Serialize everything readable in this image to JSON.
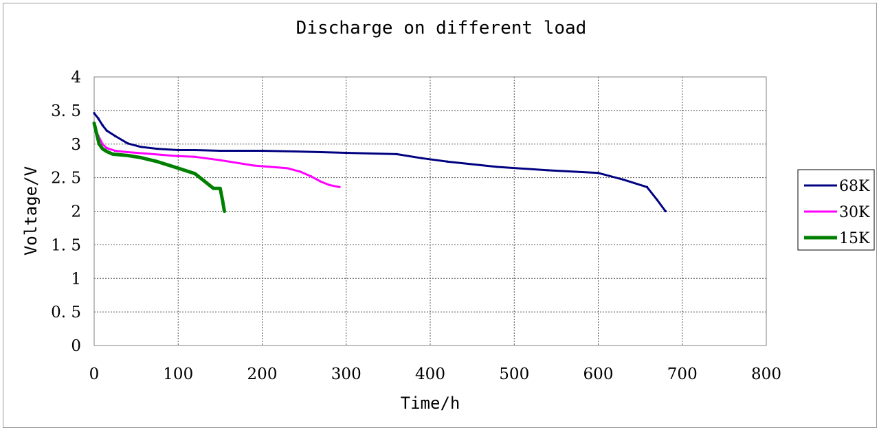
{
  "chart_data": {
    "type": "line",
    "title": "Discharge on different load",
    "xlabel": "Time/h",
    "ylabel": "Voltage/V",
    "xlim": [
      0,
      800
    ],
    "ylim": [
      0,
      4
    ],
    "x_ticks": [
      0,
      100,
      200,
      300,
      400,
      500,
      600,
      700,
      800
    ],
    "y_ticks": [
      0,
      0.5,
      1,
      1.5,
      2,
      2.5,
      3,
      3.5,
      4
    ],
    "x_tick_labels": [
      "0",
      "100",
      "200",
      "300",
      "400",
      "500",
      "600",
      "700",
      "800"
    ],
    "y_tick_labels": [
      "0",
      "0. 5",
      "1",
      "1. 5",
      "2",
      "2. 5",
      "3",
      "3. 5",
      "4"
    ],
    "grid": true,
    "legend_position": "right",
    "series": [
      {
        "name": "68K",
        "color": "#000080",
        "points": [
          [
            0,
            3.46
          ],
          [
            5,
            3.38
          ],
          [
            10,
            3.28
          ],
          [
            15,
            3.2
          ],
          [
            25,
            3.12
          ],
          [
            40,
            3.01
          ],
          [
            55,
            2.96
          ],
          [
            75,
            2.93
          ],
          [
            100,
            2.91
          ],
          [
            120,
            2.91
          ],
          [
            150,
            2.9
          ],
          [
            200,
            2.9
          ],
          [
            240,
            2.89
          ],
          [
            300,
            2.87
          ],
          [
            360,
            2.85
          ],
          [
            390,
            2.79
          ],
          [
            420,
            2.74
          ],
          [
            480,
            2.66
          ],
          [
            540,
            2.61
          ],
          [
            600,
            2.57
          ],
          [
            630,
            2.47
          ],
          [
            658,
            2.36
          ],
          [
            670,
            2.17
          ],
          [
            680,
            2.0
          ]
        ]
      },
      {
        "name": "30K",
        "color": "#ff00ff",
        "points": [
          [
            0,
            3.27
          ],
          [
            5,
            3.12
          ],
          [
            10,
            3.0
          ],
          [
            15,
            2.94
          ],
          [
            25,
            2.9
          ],
          [
            40,
            2.88
          ],
          [
            60,
            2.86
          ],
          [
            80,
            2.84
          ],
          [
            100,
            2.82
          ],
          [
            120,
            2.81
          ],
          [
            150,
            2.76
          ],
          [
            190,
            2.68
          ],
          [
            230,
            2.64
          ],
          [
            245,
            2.59
          ],
          [
            258,
            2.52
          ],
          [
            270,
            2.44
          ],
          [
            280,
            2.39
          ],
          [
            292,
            2.36
          ]
        ]
      },
      {
        "name": "15K",
        "color": "#008000",
        "points": [
          [
            0,
            3.31
          ],
          [
            3,
            3.15
          ],
          [
            6,
            3.0
          ],
          [
            10,
            2.93
          ],
          [
            15,
            2.89
          ],
          [
            22,
            2.85
          ],
          [
            40,
            2.83
          ],
          [
            55,
            2.8
          ],
          [
            75,
            2.74
          ],
          [
            100,
            2.64
          ],
          [
            120,
            2.56
          ],
          [
            132,
            2.44
          ],
          [
            142,
            2.34
          ],
          [
            150,
            2.34
          ],
          [
            153,
            2.15
          ],
          [
            155,
            2.0
          ]
        ]
      }
    ]
  }
}
